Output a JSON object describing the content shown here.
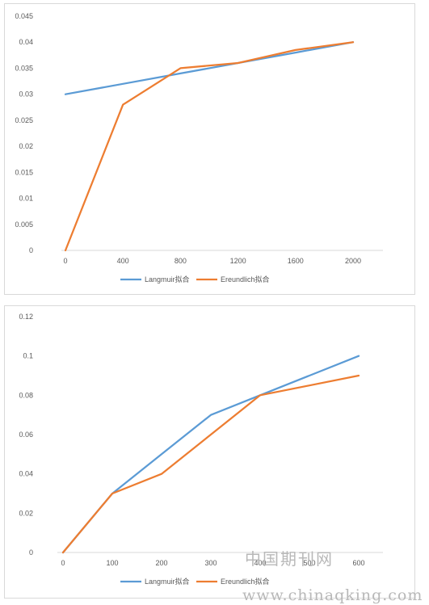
{
  "colors": {
    "langmuir": "#5b9bd5",
    "freundlich": "#ed7d31",
    "axis": "#d9d9d9",
    "text": "#595959"
  },
  "watermark": {
    "cn": "中国期刊网",
    "url": "www.chinaqking.com"
  },
  "chart_data": [
    {
      "type": "line",
      "categories": [
        "0",
        "400",
        "800",
        "1200",
        "1600",
        "2000"
      ],
      "ylim": [
        0,
        0.045
      ],
      "yticks": [
        "0",
        "0.005",
        "0.01",
        "0.015",
        "0.02",
        "0.025",
        "0.03",
        "0.035",
        "0.04",
        "0.045"
      ],
      "grid": false,
      "legend": "bottom",
      "series": [
        {
          "name": "Langmuir拟合",
          "values": [
            0.03,
            0.032,
            0.034,
            0.036,
            0.038,
            0.04
          ]
        },
        {
          "name": "Ereundlich拟合",
          "values": [
            0.0,
            0.028,
            0.035,
            0.036,
            0.0385,
            0.04
          ]
        }
      ]
    },
    {
      "type": "line",
      "categories": [
        "0",
        "100",
        "200",
        "300",
        "400",
        "500",
        "600"
      ],
      "ylim": [
        0,
        0.12
      ],
      "yticks": [
        "0",
        "0.02",
        "0.04",
        "0.06",
        "0.08",
        "0.1",
        "0.12"
      ],
      "grid": false,
      "legend": "bottom",
      "series": [
        {
          "name": "Langmuir拟合",
          "values": [
            0.0,
            0.03,
            0.05,
            0.07,
            0.08,
            0.09,
            0.1
          ]
        },
        {
          "name": "Ereundlich拟合",
          "values": [
            0.0,
            0.03,
            0.04,
            0.06,
            0.08,
            0.085,
            0.09
          ]
        }
      ]
    }
  ]
}
